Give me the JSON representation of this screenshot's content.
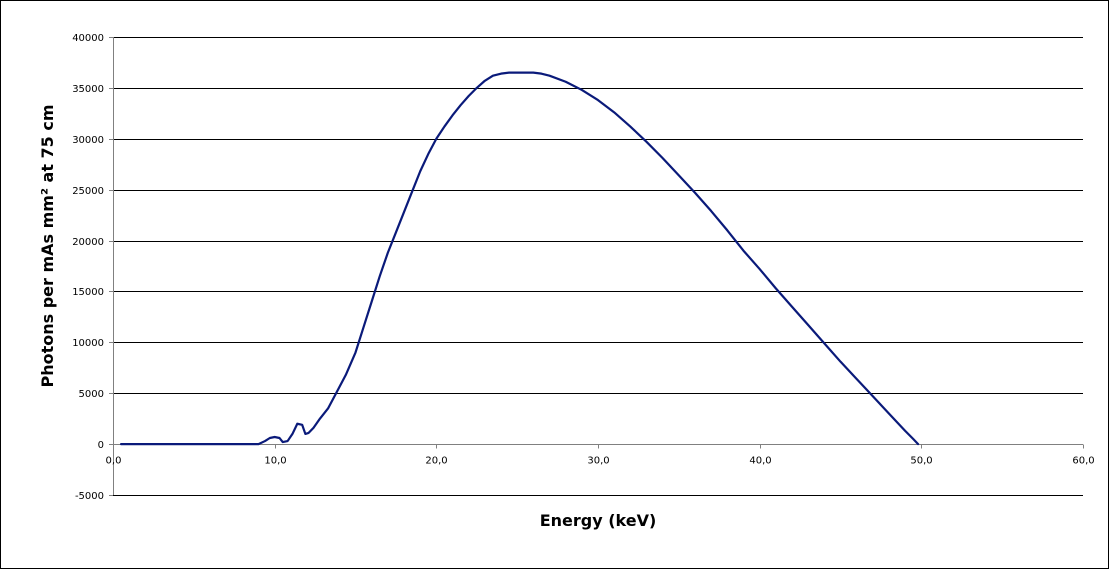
{
  "chart_data": {
    "type": "line",
    "title": "",
    "xlabel": "Energy (keV)",
    "ylabel": "Photons per mAs mm² at 75 cm",
    "xlim": [
      0,
      60
    ],
    "ylim": [
      -5000,
      40000
    ],
    "x_ticks": [
      "0,0",
      "10,0",
      "20,0",
      "30,0",
      "40,0",
      "50,0",
      "60,0"
    ],
    "y_ticks": [
      "40000",
      "35000",
      "30000",
      "25000",
      "20000",
      "15000",
      "10000",
      "5000",
      "0",
      "-5000"
    ],
    "grid": "horizontal",
    "legend": "none",
    "series": [
      {
        "color": "#0a1a7a",
        "x": [
          0.5,
          2,
          4,
          6,
          8,
          9.0,
          9.4,
          9.7,
          10.0,
          10.3,
          10.5,
          10.8,
          11.1,
          11.4,
          11.7,
          11.9,
          12.1,
          12.4,
          12.8,
          13.3,
          13.8,
          14.4,
          15.0,
          15.5,
          16.0,
          16.5,
          17.0,
          17.5,
          18.0,
          18.5,
          19.0,
          19.5,
          20.0,
          20.5,
          21.0,
          21.5,
          22.0,
          22.5,
          23.0,
          23.5,
          24.0,
          24.5,
          25.0,
          25.5,
          26.0,
          26.5,
          27.0,
          28.0,
          29.0,
          30.0,
          31.0,
          32.0,
          33.0,
          34.0,
          35.0,
          36.0,
          37.0,
          38.0,
          39.0,
          40.0,
          41.0,
          42.0,
          43.0,
          44.0,
          45.0,
          46.0,
          47.0,
          48.0,
          49.0,
          49.5,
          49.8
        ],
        "values": [
          0,
          0,
          0,
          0,
          0,
          0,
          300,
          600,
          700,
          600,
          200,
          300,
          1000,
          2000,
          1900,
          1000,
          1100,
          1600,
          2500,
          3500,
          5000,
          6800,
          9000,
          11500,
          14000,
          16500,
          18800,
          20800,
          22800,
          24800,
          26800,
          28500,
          30000,
          31200,
          32300,
          33300,
          34200,
          35000,
          35700,
          36200,
          36400,
          36500,
          36500,
          36500,
          36500,
          36400,
          36200,
          35600,
          34800,
          33800,
          32600,
          31200,
          29700,
          28100,
          26400,
          24700,
          22900,
          21000,
          19000,
          17200,
          15300,
          13500,
          11700,
          9900,
          8100,
          6400,
          4700,
          3000,
          1300,
          500,
          0
        ]
      }
    ]
  }
}
